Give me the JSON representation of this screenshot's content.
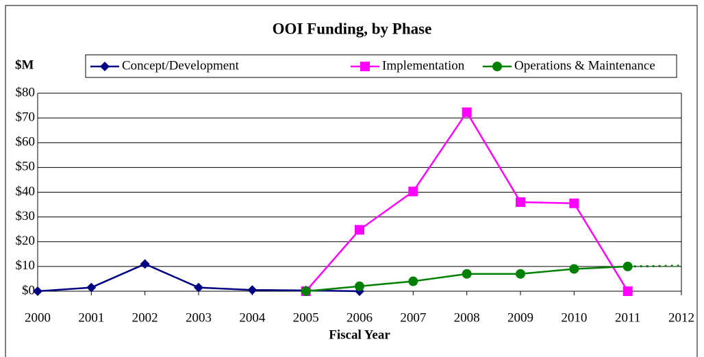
{
  "chart_data": {
    "type": "line",
    "title": "OOI Funding, by Phase",
    "ylabel": "$M",
    "xlabel": "Fiscal Year",
    "xlim": [
      2000,
      2012
    ],
    "xticks": [
      2000,
      2001,
      2002,
      2003,
      2004,
      2005,
      2006,
      2007,
      2008,
      2009,
      2010,
      2011,
      2012
    ],
    "ylim": [
      0,
      80
    ],
    "yticks": [
      {
        "value": 0,
        "label": "$0"
      },
      {
        "value": 10,
        "label": "$10"
      },
      {
        "value": 20,
        "label": "$20"
      },
      {
        "value": 30,
        "label": "$30"
      },
      {
        "value": 40,
        "label": "$40"
      },
      {
        "value": 50,
        "label": "$50"
      },
      {
        "value": 60,
        "label": "$60"
      },
      {
        "value": 70,
        "label": "$70"
      },
      {
        "value": 80,
        "label": "$80"
      }
    ],
    "grid": true,
    "legend": "top",
    "series": [
      {
        "name": "Concept/Development",
        "color": "#000080",
        "marker": "diamond",
        "x": [
          2000,
          2001,
          2002,
          2003,
          2004,
          2005,
          2006
        ],
        "values": [
          0,
          1.5,
          11,
          1.5,
          0.5,
          0.3,
          0
        ]
      },
      {
        "name": "Implementation",
        "color": "#ff00ff",
        "marker": "square",
        "x": [
          2005,
          2006,
          2007,
          2008,
          2009,
          2010,
          2011
        ],
        "values": [
          0,
          24.8,
          40.3,
          72.3,
          36,
          35.5,
          0
        ]
      },
      {
        "name": "Operations & Maintenance",
        "color": "#008000",
        "marker": "circle",
        "x": [
          2005,
          2006,
          2007,
          2008,
          2009,
          2010,
          2011
        ],
        "values": [
          0,
          2,
          4,
          7,
          7,
          9,
          10
        ]
      },
      {
        "color": "#008000",
        "dashed": true,
        "x": [
          2011,
          2012
        ],
        "values": [
          10,
          10.3
        ]
      }
    ]
  }
}
